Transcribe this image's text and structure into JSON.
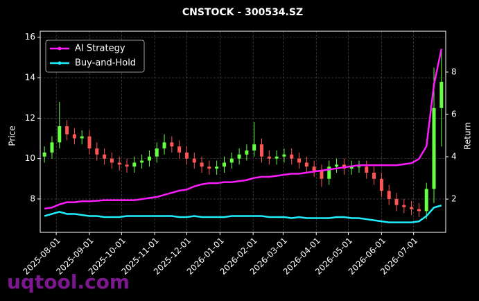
{
  "chart_data": {
    "type": "candlestick",
    "title": "CNSTOCK - 300534.SZ",
    "y_label": "Price",
    "y2_label": "Return",
    "watermark": "uqtool.com",
    "x": [
      "2025-07-21",
      "2025-07-28",
      "2025-08-04",
      "2025-08-11",
      "2025-08-18",
      "2025-08-25",
      "2025-09-01",
      "2025-09-08",
      "2025-09-15",
      "2025-09-22",
      "2025-09-29",
      "2025-10-06",
      "2025-10-13",
      "2025-10-20",
      "2025-10-27",
      "2025-11-03",
      "2025-11-10",
      "2025-11-17",
      "2025-11-24",
      "2025-12-01",
      "2025-12-08",
      "2025-12-15",
      "2025-12-22",
      "2025-12-29",
      "2026-01-05",
      "2026-01-12",
      "2026-01-19",
      "2026-01-26",
      "2026-02-02",
      "2026-02-09",
      "2026-02-16",
      "2026-02-23",
      "2026-03-02",
      "2026-03-09",
      "2026-03-16",
      "2026-03-23",
      "2026-03-30",
      "2026-04-06",
      "2026-04-13",
      "2026-04-20",
      "2026-04-27",
      "2026-05-04",
      "2026-05-11",
      "2026-05-18",
      "2026-05-25",
      "2026-06-01",
      "2026-06-08",
      "2026-06-15",
      "2026-06-22",
      "2026-06-29",
      "2026-07-06",
      "2026-07-13",
      "2026-07-20",
      "2026-07-27"
    ],
    "open": [
      10.1,
      10.3,
      10.8,
      11.6,
      11.2,
      11.0,
      11.1,
      10.5,
      10.2,
      10.0,
      9.8,
      9.7,
      9.6,
      9.8,
      9.9,
      10.1,
      10.5,
      10.8,
      10.6,
      10.3,
      10.0,
      9.8,
      9.6,
      9.5,
      9.6,
      9.8,
      10.0,
      10.2,
      10.4,
      10.7,
      10.1,
      10.0,
      10.1,
      10.2,
      10.0,
      9.8,
      9.6,
      9.4,
      9.0,
      9.6,
      9.7,
      9.5,
      9.6,
      9.6,
      9.3,
      9.0,
      8.4,
      8.0,
      7.7,
      7.6,
      7.5,
      7.4,
      8.5,
      12.5
    ],
    "high": [
      10.6,
      11.1,
      12.8,
      11.9,
      11.5,
      11.4,
      11.4,
      10.8,
      10.5,
      10.3,
      10.1,
      10.0,
      10.1,
      10.2,
      10.4,
      10.8,
      11.2,
      11.1,
      10.9,
      10.6,
      10.3,
      10.1,
      9.9,
      9.9,
      10.1,
      10.3,
      10.5,
      10.7,
      11.8,
      11.0,
      10.4,
      10.4,
      10.5,
      10.5,
      10.3,
      10.1,
      9.9,
      9.7,
      9.9,
      10.0,
      10.0,
      9.9,
      9.9,
      9.9,
      9.6,
      9.3,
      8.7,
      8.3,
      8.0,
      7.9,
      7.8,
      8.8,
      14.5,
      15.4
    ],
    "low": [
      9.8,
      10.0,
      10.5,
      10.9,
      10.7,
      10.7,
      10.2,
      9.9,
      9.7,
      9.5,
      9.4,
      9.3,
      9.3,
      9.5,
      9.6,
      9.8,
      10.2,
      10.3,
      10.0,
      9.7,
      9.5,
      9.3,
      9.2,
      9.2,
      9.3,
      9.5,
      9.7,
      9.9,
      10.1,
      9.8,
      9.7,
      9.7,
      9.8,
      9.7,
      9.5,
      9.3,
      9.1,
      8.6,
      8.7,
      9.3,
      9.2,
      9.2,
      9.3,
      9.0,
      8.7,
      8.1,
      7.7,
      7.4,
      7.3,
      7.2,
      7.1,
      7.0,
      7.8,
      10.6
    ],
    "close": [
      10.3,
      10.8,
      11.6,
      11.2,
      11.0,
      11.1,
      10.5,
      10.2,
      10.0,
      9.8,
      9.7,
      9.6,
      9.8,
      9.9,
      10.1,
      10.5,
      10.8,
      10.6,
      10.3,
      10.0,
      9.8,
      9.6,
      9.5,
      9.6,
      9.8,
      10.0,
      10.2,
      10.4,
      10.7,
      10.1,
      10.0,
      10.1,
      10.2,
      10.0,
      9.8,
      9.6,
      9.4,
      9.0,
      9.6,
      9.7,
      9.5,
      9.6,
      9.6,
      9.3,
      9.0,
      8.4,
      8.0,
      7.7,
      7.6,
      7.5,
      7.4,
      8.5,
      12.5,
      13.8
    ],
    "up_color": "#66ff44",
    "down_color": "#ff5555",
    "series": [
      {
        "name": "AI Strategy",
        "color": "#ff1cff",
        "axis": "y2",
        "values": [
          1.55,
          1.6,
          1.75,
          1.85,
          1.85,
          1.9,
          1.9,
          1.92,
          1.95,
          1.95,
          1.95,
          1.95,
          1.95,
          2.0,
          2.05,
          2.1,
          2.2,
          2.3,
          2.4,
          2.45,
          2.6,
          2.7,
          2.75,
          2.75,
          2.8,
          2.8,
          2.85,
          2.9,
          3.0,
          3.05,
          3.05,
          3.1,
          3.15,
          3.2,
          3.2,
          3.25,
          3.3,
          3.35,
          3.4,
          3.45,
          3.5,
          3.55,
          3.6,
          3.6,
          3.6,
          3.6,
          3.6,
          3.6,
          3.65,
          3.7,
          3.9,
          4.5,
          7.4,
          9.1
        ]
      },
      {
        "name": "Buy-and-Hold",
        "color": "#1ef0ff",
        "axis": "y2",
        "values": [
          1.2,
          1.3,
          1.4,
          1.3,
          1.3,
          1.25,
          1.2,
          1.2,
          1.15,
          1.15,
          1.15,
          1.2,
          1.2,
          1.2,
          1.2,
          1.2,
          1.2,
          1.2,
          1.15,
          1.15,
          1.2,
          1.15,
          1.15,
          1.15,
          1.15,
          1.2,
          1.2,
          1.2,
          1.2,
          1.2,
          1.15,
          1.15,
          1.15,
          1.1,
          1.15,
          1.1,
          1.1,
          1.1,
          1.1,
          1.15,
          1.15,
          1.1,
          1.1,
          1.05,
          1.0,
          0.95,
          0.9,
          0.9,
          0.9,
          0.9,
          0.95,
          1.2,
          1.6,
          1.7
        ]
      }
    ],
    "xlim": [
      "2025-07-17",
      "2026-07-31"
    ],
    "xticks": [
      "2025-08-01",
      "2025-09-01",
      "2025-10-01",
      "2025-11-01",
      "2025-12-01",
      "2026-01-01",
      "2026-02-01",
      "2026-03-01",
      "2026-04-01",
      "2026-05-01",
      "2026-06-01",
      "2026-07-01"
    ],
    "ylim": [
      6.35,
      16.3
    ],
    "yticks": [
      8,
      10,
      12,
      14,
      16
    ],
    "y2lim": [
      0.43,
      9.93
    ],
    "y2ticks": [
      2,
      4,
      6,
      8
    ],
    "grid": true,
    "legend": "upper-left"
  }
}
